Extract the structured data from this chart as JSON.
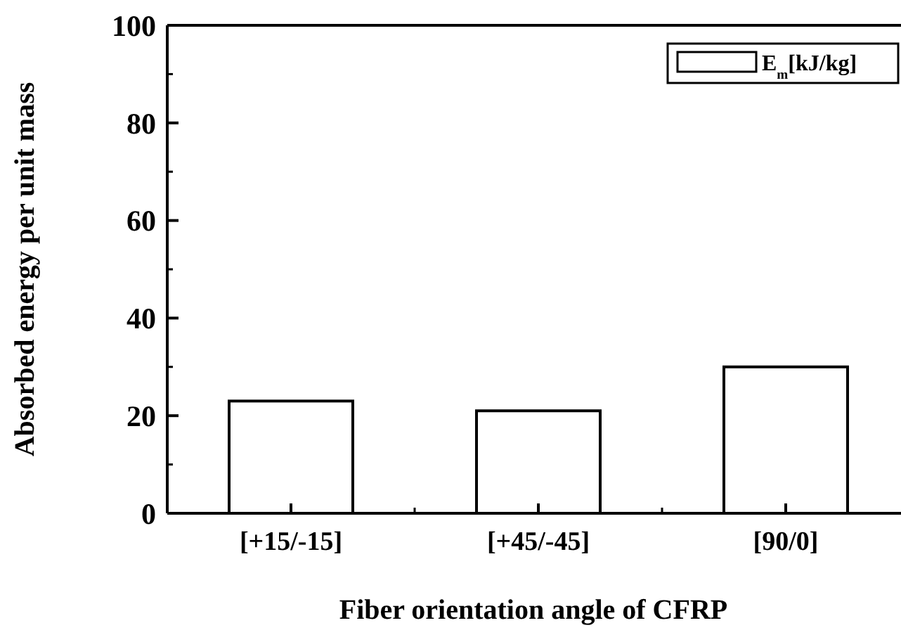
{
  "chart_data": {
    "type": "bar",
    "xlabel": "Fiber orientation angle of CFRP",
    "ylabel": "Absorbed energy per unit mass",
    "categories": [
      "[+15/-15]",
      "[+45/-45]",
      "[90/0]"
    ],
    "series": [
      {
        "name": "E$_{m}$[kJ/kg]",
        "color": "#ffffff",
        "values": [
          23,
          21,
          30
        ]
      }
    ],
    "ylim": [
      0,
      100
    ],
    "yticks": [
      0,
      20,
      40,
      60,
      80,
      100
    ],
    "grid": false,
    "legend": "top right"
  }
}
